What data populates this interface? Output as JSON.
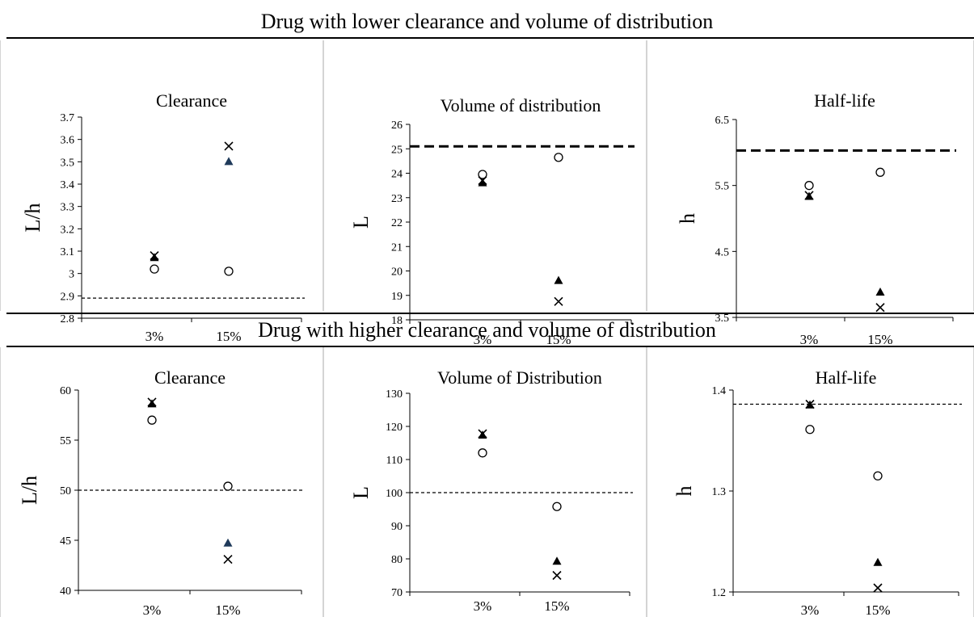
{
  "section_top_title": "Drug with lower clearance and volume of distribution",
  "section_bottom_title": "Drug with higher clearance and volume of distribution",
  "chart_data": [
    {
      "type": "scatter",
      "title": "Clearance",
      "ylabel": "L/h",
      "categories": [
        "3%",
        "15%"
      ],
      "ylim": [
        2.8,
        3.7
      ],
      "yticks": [
        "3.7",
        "3.6",
        "3.5",
        "3.4",
        "3.3",
        "3.2",
        "3.1",
        "3",
        "2.9",
        "2.8"
      ],
      "reference_line": {
        "value": 2.89,
        "style": "dotted"
      },
      "series": [
        {
          "marker": "circle",
          "values": [
            3.02,
            3.01
          ]
        },
        {
          "marker": "triangle",
          "values": [
            3.07,
            3.5
          ]
        },
        {
          "marker": "x",
          "values": [
            3.08,
            3.57
          ]
        }
      ]
    },
    {
      "type": "scatter",
      "title": "Volume of distribution",
      "ylabel": "L",
      "categories": [
        "3%",
        "15%"
      ],
      "ylim": [
        18,
        26
      ],
      "yticks": [
        "26",
        "25",
        "24",
        "23",
        "22",
        "21",
        "20",
        "19",
        "18"
      ],
      "reference_line": {
        "value": 25.1,
        "style": "dashed"
      },
      "series": [
        {
          "marker": "circle",
          "values": [
            23.95,
            24.65
          ]
        },
        {
          "marker": "triangle",
          "values": [
            23.6,
            19.6
          ]
        },
        {
          "marker": "x",
          "values": [
            23.7,
            18.75
          ]
        }
      ]
    },
    {
      "type": "scatter",
      "title": "Half-life",
      "ylabel": "h",
      "categories": [
        "3%",
        "15%"
      ],
      "ylim": [
        3.5,
        6.5
      ],
      "yticks": [
        "6.5",
        "5.5",
        "4.5",
        "3.5"
      ],
      "reference_line": {
        "value": 6.03,
        "style": "dashed"
      },
      "series": [
        {
          "marker": "circle",
          "values": [
            5.5,
            5.7
          ]
        },
        {
          "marker": "triangle",
          "values": [
            5.33,
            3.88
          ]
        },
        {
          "marker": "x",
          "values": [
            5.35,
            3.65
          ]
        }
      ]
    },
    {
      "type": "scatter",
      "title": "Clearance",
      "ylabel": "L/h",
      "categories": [
        "3%",
        "15%"
      ],
      "ylim": [
        40,
        60
      ],
      "yticks": [
        "60",
        "55",
        "50",
        "45",
        "40"
      ],
      "reference_line": {
        "value": 50,
        "style": "dotted"
      },
      "series": [
        {
          "marker": "circle",
          "values": [
            57,
            50.4
          ]
        },
        {
          "marker": "triangle",
          "values": [
            58.6,
            44.7
          ]
        },
        {
          "marker": "x",
          "values": [
            58.8,
            43.1
          ]
        }
      ]
    },
    {
      "type": "scatter",
      "title": "Volume of Distribution",
      "ylabel": "L",
      "categories": [
        "3%",
        "15%"
      ],
      "ylim": [
        70,
        130
      ],
      "yticks": [
        "130",
        "120",
        "110",
        "100",
        "90",
        "80",
        "70"
      ],
      "reference_line": {
        "value": 100,
        "style": "dotted"
      },
      "series": [
        {
          "marker": "circle",
          "values": [
            112,
            95.8
          ]
        },
        {
          "marker": "triangle",
          "values": [
            117.3,
            79.2
          ]
        },
        {
          "marker": "x",
          "values": [
            117.8,
            75
          ]
        }
      ]
    },
    {
      "type": "scatter",
      "title": "Half-life",
      "ylabel": "h",
      "categories": [
        "3%",
        "15%"
      ],
      "ylim": [
        1.2,
        1.4
      ],
      "yticks": [
        "1.4",
        "1.3",
        "1.2"
      ],
      "reference_line": {
        "value": 1.386,
        "style": "dotted"
      },
      "series": [
        {
          "marker": "circle",
          "values": [
            1.361,
            1.315
          ]
        },
        {
          "marker": "triangle",
          "values": [
            1.385,
            1.229
          ]
        },
        {
          "marker": "x",
          "values": [
            1.386,
            1.204
          ]
        }
      ]
    }
  ]
}
